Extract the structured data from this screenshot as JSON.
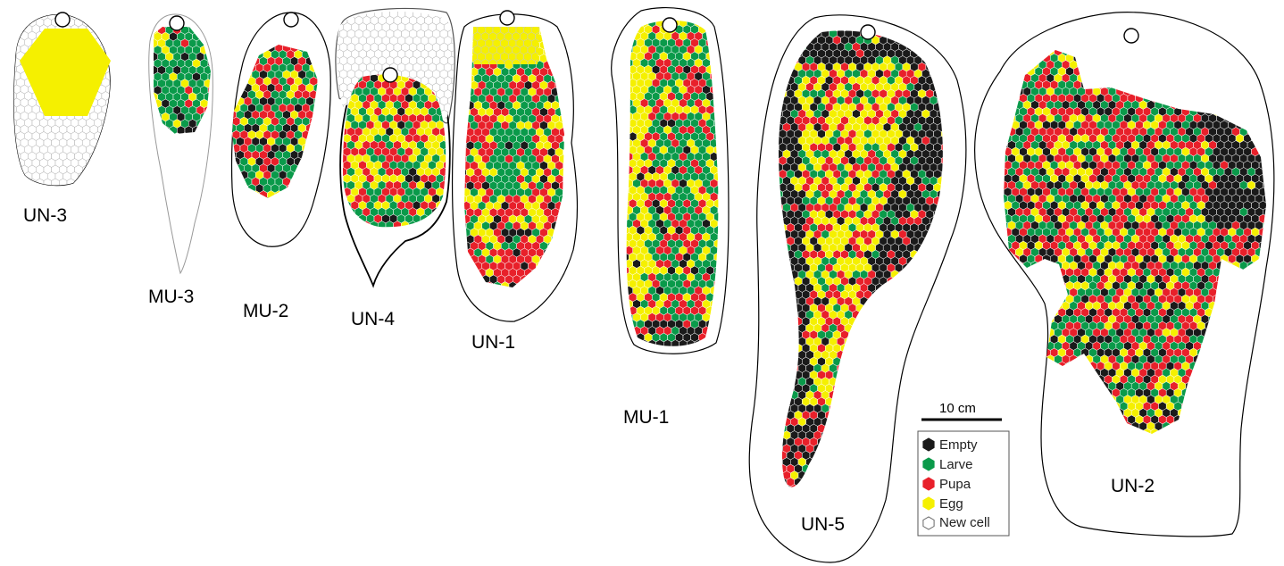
{
  "combs": [
    {
      "label": "UN-3",
      "pattern": "brood-uniform-egg"
    },
    {
      "label": "MU-3",
      "pattern": "mixed"
    },
    {
      "label": "MU-2",
      "pattern": "mixed"
    },
    {
      "label": "UN-4",
      "pattern": "mixed"
    },
    {
      "label": "UN-1",
      "pattern": "mixed"
    },
    {
      "label": "MU-1",
      "pattern": "mixed"
    },
    {
      "label": "UN-5",
      "pattern": "mixed"
    },
    {
      "label": "UN-2",
      "pattern": "mixed"
    }
  ],
  "scale_bar": {
    "label": "10 cm"
  },
  "legend": [
    {
      "label": "Empty",
      "color": "#1a1a1a"
    },
    {
      "label": "Larve",
      "color": "#0a9a4a"
    },
    {
      "label": "Pupa",
      "color": "#e8202a"
    },
    {
      "label": "Egg",
      "color": "#f5f000"
    },
    {
      "label": "New cell",
      "color": "#ffffff"
    }
  ]
}
